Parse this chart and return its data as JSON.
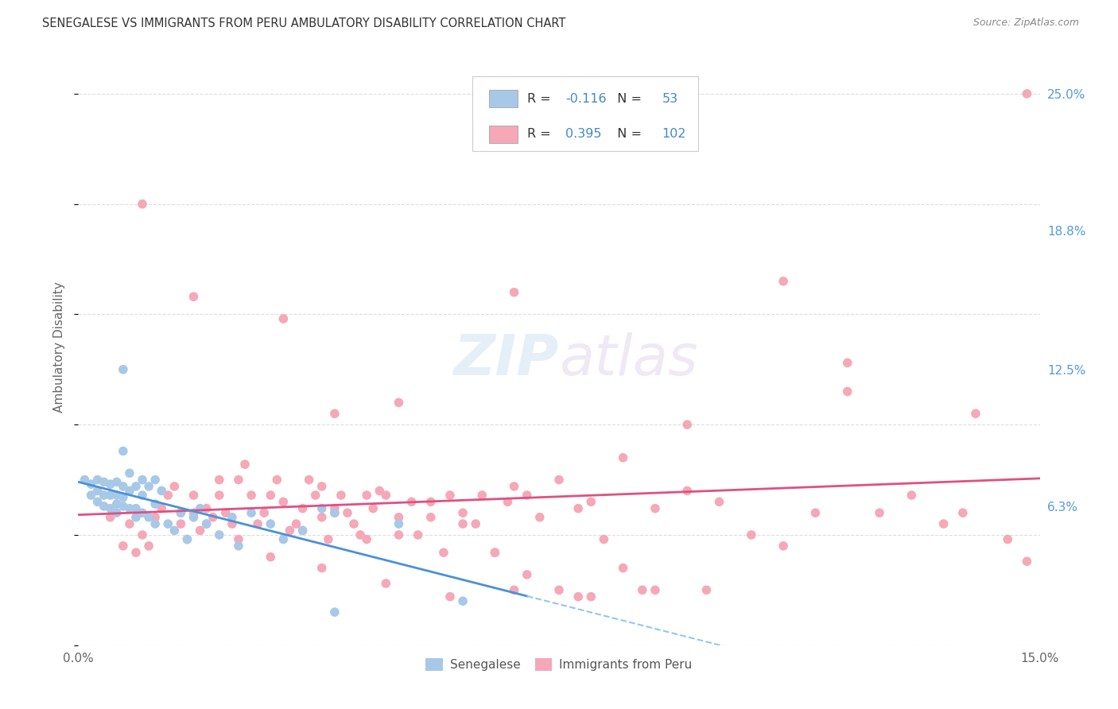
{
  "title": "SENEGALESE VS IMMIGRANTS FROM PERU AMBULATORY DISABILITY CORRELATION CHART",
  "source": "Source: ZipAtlas.com",
  "ylabel": "Ambulatory Disability",
  "xlim": [
    0.0,
    0.15
  ],
  "ylim": [
    0.0,
    0.27
  ],
  "ytick_labels": [
    "6.3%",
    "12.5%",
    "18.8%",
    "25.0%"
  ],
  "ytick_values": [
    0.063,
    0.125,
    0.188,
    0.25
  ],
  "legend_labels": [
    "Senegalese",
    "Immigrants from Peru"
  ],
  "senegalese_color": "#a8c8e8",
  "peru_color": "#f4a8b8",
  "senegalese_line_color": "#4a90d9",
  "peru_line_color": "#e05080",
  "senegalese_dash_color": "#90c8f0",
  "R_senegalese": -0.116,
  "N_senegalese": 53,
  "R_peru": 0.395,
  "N_peru": 102,
  "background_color": "#ffffff",
  "grid_color": "#dddddd",
  "watermark_zip": "ZIP",
  "watermark_atlas": "atlas",
  "senegalese_x": [
    0.001,
    0.002,
    0.002,
    0.003,
    0.003,
    0.003,
    0.004,
    0.004,
    0.004,
    0.005,
    0.005,
    0.005,
    0.006,
    0.006,
    0.006,
    0.006,
    0.007,
    0.007,
    0.007,
    0.007,
    0.008,
    0.008,
    0.008,
    0.009,
    0.009,
    0.009,
    0.01,
    0.01,
    0.01,
    0.011,
    0.011,
    0.012,
    0.012,
    0.012,
    0.013,
    0.014,
    0.015,
    0.016,
    0.017,
    0.018,
    0.019,
    0.02,
    0.022,
    0.024,
    0.025,
    0.027,
    0.03,
    0.032,
    0.035,
    0.038,
    0.04,
    0.05,
    0.06
  ],
  "senegalese_y": [
    0.075,
    0.068,
    0.073,
    0.065,
    0.07,
    0.075,
    0.063,
    0.068,
    0.074,
    0.062,
    0.068,
    0.073,
    0.06,
    0.064,
    0.068,
    0.074,
    0.063,
    0.067,
    0.072,
    0.088,
    0.062,
    0.07,
    0.078,
    0.058,
    0.072,
    0.062,
    0.06,
    0.068,
    0.075,
    0.058,
    0.072,
    0.055,
    0.064,
    0.075,
    0.07,
    0.055,
    0.052,
    0.06,
    0.048,
    0.058,
    0.062,
    0.055,
    0.05,
    0.058,
    0.045,
    0.06,
    0.055,
    0.048,
    0.052,
    0.062,
    0.06,
    0.055,
    0.02
  ],
  "peru_x": [
    0.005,
    0.007,
    0.008,
    0.009,
    0.01,
    0.011,
    0.012,
    0.013,
    0.014,
    0.015,
    0.016,
    0.016,
    0.017,
    0.018,
    0.018,
    0.019,
    0.02,
    0.021,
    0.022,
    0.022,
    0.023,
    0.024,
    0.025,
    0.026,
    0.027,
    0.028,
    0.029,
    0.03,
    0.031,
    0.032,
    0.033,
    0.034,
    0.035,
    0.036,
    0.037,
    0.038,
    0.038,
    0.039,
    0.04,
    0.041,
    0.042,
    0.043,
    0.044,
    0.045,
    0.046,
    0.047,
    0.048,
    0.05,
    0.052,
    0.053,
    0.055,
    0.057,
    0.058,
    0.06,
    0.062,
    0.063,
    0.065,
    0.067,
    0.068,
    0.07,
    0.072,
    0.075,
    0.078,
    0.08,
    0.082,
    0.085,
    0.09,
    0.095,
    0.1,
    0.105,
    0.11,
    0.115,
    0.12,
    0.125,
    0.13,
    0.135,
    0.138,
    0.14,
    0.145,
    0.148,
    0.02,
    0.025,
    0.03,
    0.035,
    0.04,
    0.045,
    0.05,
    0.055,
    0.06,
    0.065,
    0.07,
    0.075,
    0.08,
    0.085,
    0.09,
    0.038,
    0.048,
    0.058,
    0.068,
    0.078,
    0.088,
    0.098
  ],
  "peru_y": [
    0.058,
    0.045,
    0.055,
    0.042,
    0.05,
    0.045,
    0.058,
    0.062,
    0.068,
    0.072,
    0.055,
    0.06,
    0.048,
    0.06,
    0.068,
    0.052,
    0.062,
    0.058,
    0.068,
    0.075,
    0.06,
    0.055,
    0.075,
    0.082,
    0.068,
    0.055,
    0.06,
    0.068,
    0.075,
    0.065,
    0.052,
    0.055,
    0.062,
    0.075,
    0.068,
    0.058,
    0.072,
    0.048,
    0.062,
    0.068,
    0.06,
    0.055,
    0.05,
    0.048,
    0.062,
    0.07,
    0.068,
    0.058,
    0.065,
    0.05,
    0.058,
    0.042,
    0.068,
    0.06,
    0.055,
    0.068,
    0.042,
    0.065,
    0.072,
    0.068,
    0.058,
    0.075,
    0.062,
    0.065,
    0.048,
    0.085,
    0.062,
    0.07,
    0.065,
    0.05,
    0.045,
    0.06,
    0.115,
    0.06,
    0.068,
    0.055,
    0.06,
    0.105,
    0.048,
    0.038,
    0.055,
    0.048,
    0.04,
    0.052,
    0.06,
    0.068,
    0.05,
    0.065,
    0.055,
    0.042,
    0.032,
    0.025,
    0.022,
    0.035,
    0.025,
    0.035,
    0.028,
    0.022,
    0.025,
    0.022,
    0.025,
    0.025
  ],
  "peru_outlier_x": [
    0.148
  ],
  "peru_outlier_y": [
    0.25
  ],
  "peru_high1_x": [
    0.01
  ],
  "peru_high1_y": [
    0.2
  ],
  "peru_high2_x": [
    0.018
  ],
  "peru_high2_y": [
    0.158
  ],
  "peru_high3_x": [
    0.032
  ],
  "peru_high3_y": [
    0.148
  ],
  "peru_high4_x": [
    0.068
  ],
  "peru_high4_y": [
    0.16
  ],
  "peru_high5_x": [
    0.11
  ],
  "peru_high5_y": [
    0.165
  ],
  "peru_high6_x": [
    0.095
  ],
  "peru_high6_y": [
    0.1
  ],
  "peru_high7_x": [
    0.12
  ],
  "peru_high7_y": [
    0.128
  ],
  "senegalese_high1_x": [
    0.007
  ],
  "senegalese_high1_y": [
    0.125
  ],
  "senegalese_low1_x": [
    0.04
  ],
  "senegalese_low1_y": [
    0.015
  ]
}
